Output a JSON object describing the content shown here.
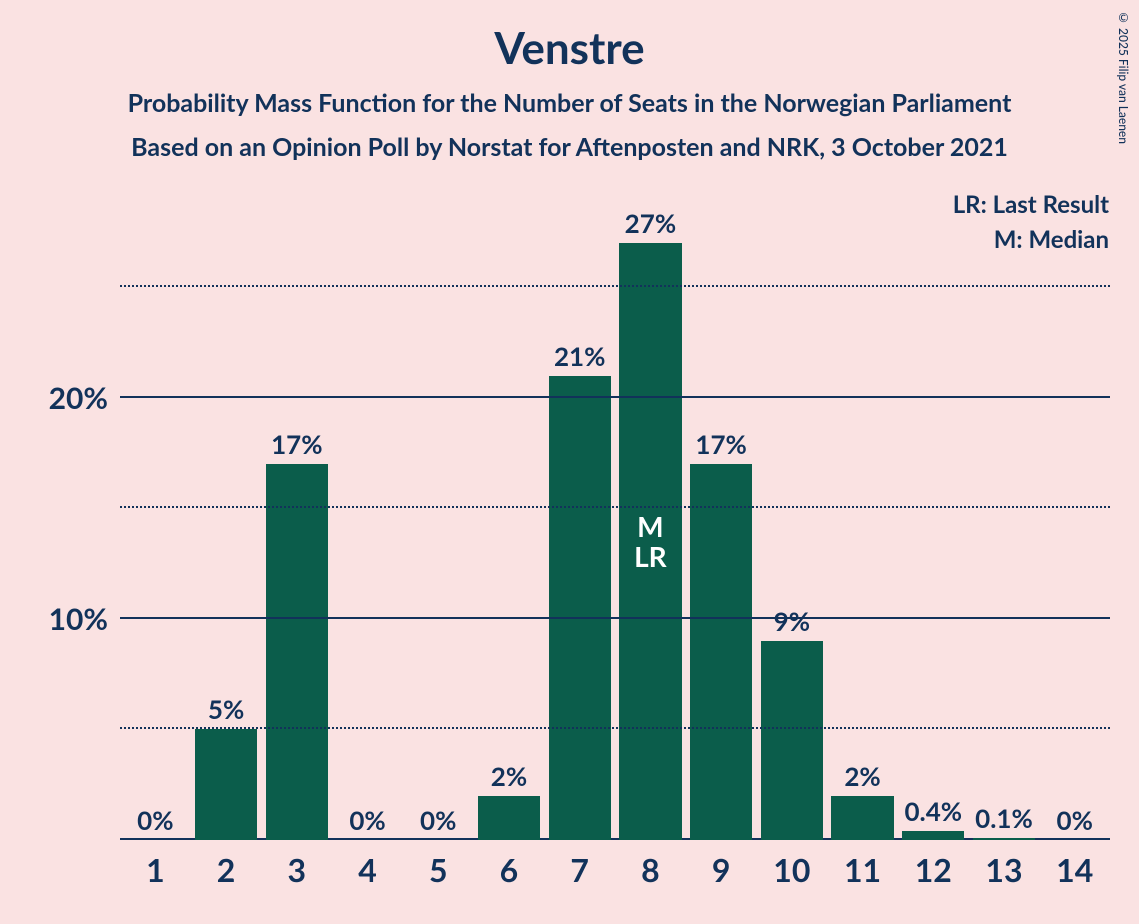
{
  "copyright": "© 2025 Filip van Laenen",
  "title": "Venstre",
  "subtitle1": "Probability Mass Function for the Number of Seats in the Norwegian Parliament",
  "subtitle2": "Based on an Opinion Poll by Norstat for Aftenposten and NRK, 3 October 2021",
  "legend": {
    "lr": "LR: Last Result",
    "m": "M: Median"
  },
  "chart": {
    "type": "bar",
    "background_color": "#fae2e2",
    "bar_color": "#0b5d4b",
    "text_color": "#12325a",
    "bar_width": 0.88,
    "y_axis": {
      "max": 28.5,
      "major_ticks": [
        10,
        20
      ],
      "minor_ticks": [
        5,
        15,
        25
      ],
      "tick_labels": {
        "10": "10%",
        "20": "20%"
      }
    },
    "categories": [
      "1",
      "2",
      "3",
      "4",
      "5",
      "6",
      "7",
      "8",
      "9",
      "10",
      "11",
      "12",
      "13",
      "14"
    ],
    "values": [
      0,
      5,
      17,
      0,
      0,
      2,
      21,
      27,
      17,
      9,
      2,
      0.4,
      0.1,
      0
    ],
    "value_labels": [
      "0%",
      "5%",
      "17%",
      "0%",
      "0%",
      "2%",
      "21%",
      "27%",
      "17%",
      "9%",
      "2%",
      "0.4%",
      "0.1%",
      "0%"
    ],
    "annotations": {
      "8": [
        "M",
        "LR"
      ]
    },
    "fontsize": {
      "title": 44,
      "subtitle": 25,
      "axis": 30,
      "bar_label": 26,
      "x_label": 32,
      "legend": 24,
      "annot": 28
    }
  }
}
